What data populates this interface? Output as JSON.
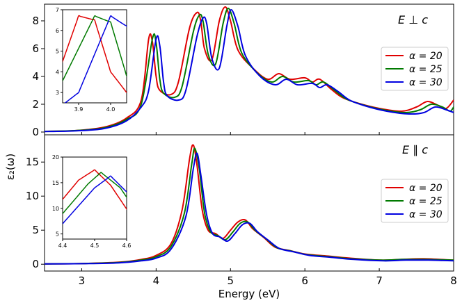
{
  "chart_data": {
    "type": "line",
    "xlabel": "Energy (eV)",
    "ylabel": "ε₂(ω)",
    "xlim": [
      2.5,
      8
    ],
    "x_ticks": [
      "3",
      "4",
      "5",
      "6",
      "7",
      "8"
    ],
    "colors": {
      "alpha20": "#e00000",
      "alpha25": "#007a00",
      "alpha30": "#0000e0"
    },
    "panels": [
      {
        "label": "E ⊥ c",
        "ylim": [
          -0.2,
          9.2
        ],
        "y_ticks": [
          "0",
          "2",
          "4",
          "6",
          "8"
        ],
        "legend": [
          "α = 20",
          "α = 25",
          "α = 30"
        ],
        "series": [
          {
            "name": "α = 20",
            "color": "#e00000",
            "x": [
              2.5,
              2.9,
              3.3,
              3.6,
              3.8,
              3.9,
              3.95,
              4.0,
              4.05,
              4.2,
              4.3,
              4.45,
              4.55,
              4.6,
              4.65,
              4.75,
              4.85,
              4.93,
              5.0,
              5.1,
              5.3,
              5.5,
              5.65,
              5.8,
              6.0,
              6.1,
              6.2,
              6.35,
              6.5,
              6.7,
              7.0,
              7.3,
              7.5,
              7.65,
              7.8,
              7.9,
              8.0
            ],
            "y": [
              0.05,
              0.1,
              0.35,
              1.0,
              2.3,
              6.7,
              6.5,
              4.0,
              3.0,
              2.7,
              3.6,
              7.5,
              8.6,
              8.0,
              6.0,
              5.2,
              8.0,
              9.0,
              8.0,
              5.9,
              4.6,
              3.8,
              4.2,
              3.8,
              3.9,
              3.6,
              3.8,
              3.1,
              2.5,
              2.1,
              1.7,
              1.5,
              1.8,
              2.2,
              1.9,
              1.7,
              2.3
            ]
          },
          {
            "name": "α = 25",
            "color": "#007a00",
            "x": [
              2.5,
              2.9,
              3.3,
              3.6,
              3.8,
              3.95,
              4.0,
              4.05,
              4.1,
              4.25,
              4.35,
              4.5,
              4.58,
              4.63,
              4.7,
              4.8,
              4.9,
              4.97,
              5.05,
              5.15,
              5.35,
              5.55,
              5.7,
              5.85,
              6.05,
              6.15,
              6.25,
              6.4,
              6.55,
              6.75,
              7.05,
              7.35,
              7.55,
              7.7,
              7.85,
              7.95,
              8.0
            ],
            "y": [
              0.05,
              0.1,
              0.3,
              0.9,
              2.0,
              6.7,
              6.4,
              3.8,
              2.8,
              2.5,
              3.3,
              7.2,
              8.4,
              8.0,
              5.6,
              4.9,
              7.8,
              8.9,
              7.8,
              5.7,
              4.3,
              3.6,
              4.0,
              3.6,
              3.7,
              3.4,
              3.6,
              3.0,
              2.4,
              2.0,
              1.6,
              1.4,
              1.6,
              2.0,
              1.8,
              1.5,
              1.8
            ]
          },
          {
            "name": "α = 30",
            "color": "#0000e0",
            "x": [
              2.5,
              2.9,
              3.3,
              3.6,
              3.8,
              3.9,
              4.0,
              4.05,
              4.1,
              4.15,
              4.3,
              4.4,
              4.55,
              4.63,
              4.68,
              4.75,
              4.85,
              4.95,
              5.01,
              5.1,
              5.2,
              5.4,
              5.6,
              5.75,
              5.9,
              6.1,
              6.2,
              6.3,
              6.45,
              6.6,
              6.8,
              7.1,
              7.4,
              7.6,
              7.75,
              7.9,
              8.0
            ],
            "y": [
              0.04,
              0.08,
              0.25,
              0.8,
              1.8,
              3.0,
              6.7,
              6.2,
              3.6,
              2.6,
              2.3,
              3.0,
              6.9,
              8.2,
              7.8,
              5.3,
              4.6,
              7.6,
              8.8,
              7.6,
              5.5,
              4.0,
              3.4,
              3.8,
              3.4,
              3.5,
              3.2,
              3.4,
              2.9,
              2.3,
              1.9,
              1.5,
              1.3,
              1.4,
              1.8,
              1.6,
              1.4
            ]
          }
        ],
        "inset": {
          "xlim": [
            3.85,
            4.05
          ],
          "ylim": [
            2.5,
            7
          ],
          "x_ticks": [
            "3.9",
            "4.0"
          ],
          "y_ticks": [
            "3",
            "4",
            "5",
            "6",
            "7"
          ]
        }
      },
      {
        "label": "E ∥ c",
        "ylim": [
          -1,
          19
        ],
        "y_ticks": [
          "0",
          "5",
          "10",
          "15"
        ],
        "legend": [
          "α = 20",
          "α = 25",
          "α = 30"
        ],
        "series": [
          {
            "name": "α = 20",
            "color": "#e00000",
            "x": [
              2.5,
              3.0,
              3.5,
              3.8,
              4.0,
              4.2,
              4.35,
              4.45,
              4.5,
              4.55,
              4.62,
              4.7,
              4.8,
              4.9,
              5.0,
              5.1,
              5.2,
              5.3,
              5.45,
              5.6,
              5.8,
              6.0,
              6.3,
              6.6,
              7.0,
              7.3,
              7.6,
              8.0
            ],
            "y": [
              0.05,
              0.1,
              0.3,
              0.7,
              1.3,
              3.0,
              8.0,
              15.5,
              17.5,
              14.5,
              8.0,
              5.0,
              4.5,
              3.8,
              5.0,
              6.2,
              6.5,
              5.2,
              3.9,
              2.5,
              2.0,
              1.5,
              1.2,
              0.9,
              0.6,
              0.7,
              0.8,
              0.6
            ]
          },
          {
            "name": "α = 25",
            "color": "#007a00",
            "x": [
              2.5,
              3.0,
              3.5,
              3.8,
              4.0,
              4.2,
              4.38,
              4.48,
              4.52,
              4.58,
              4.65,
              4.73,
              4.83,
              4.93,
              5.03,
              5.13,
              5.23,
              5.33,
              5.48,
              5.63,
              5.83,
              6.03,
              6.33,
              6.63,
              7.03,
              7.33,
              7.63,
              8.0
            ],
            "y": [
              0.05,
              0.1,
              0.25,
              0.6,
              1.1,
              2.6,
              7.5,
              14.8,
              17.0,
              14.0,
              7.6,
              4.8,
              4.2,
              3.6,
              4.7,
              6.0,
              6.2,
              5.0,
              3.7,
              2.4,
              1.9,
              1.4,
              1.1,
              0.8,
              0.6,
              0.7,
              0.7,
              0.6
            ]
          },
          {
            "name": "α = 30",
            "color": "#0000e0",
            "x": [
              2.5,
              3.0,
              3.5,
              3.8,
              4.0,
              4.2,
              4.4,
              4.5,
              4.55,
              4.6,
              4.68,
              4.76,
              4.86,
              4.96,
              5.06,
              5.16,
              5.26,
              5.36,
              5.51,
              5.66,
              5.86,
              6.06,
              6.36,
              6.66,
              7.06,
              7.36,
              7.66,
              8.0
            ],
            "y": [
              0.04,
              0.08,
              0.2,
              0.5,
              0.9,
              2.2,
              7.0,
              14.0,
              16.3,
              13.2,
              7.2,
              4.5,
              4.0,
              3.4,
              4.5,
              5.8,
              6.0,
              4.8,
              3.5,
              2.3,
              1.8,
              1.3,
              1.0,
              0.7,
              0.5,
              0.6,
              0.6,
              0.5
            ]
          }
        ],
        "inset": {
          "xlim": [
            4.4,
            4.6
          ],
          "ylim": [
            4,
            20
          ],
          "x_ticks": [
            "4.4",
            "4.5",
            "4.6"
          ],
          "y_ticks": [
            "5",
            "10",
            "15",
            "20"
          ]
        }
      }
    ]
  }
}
